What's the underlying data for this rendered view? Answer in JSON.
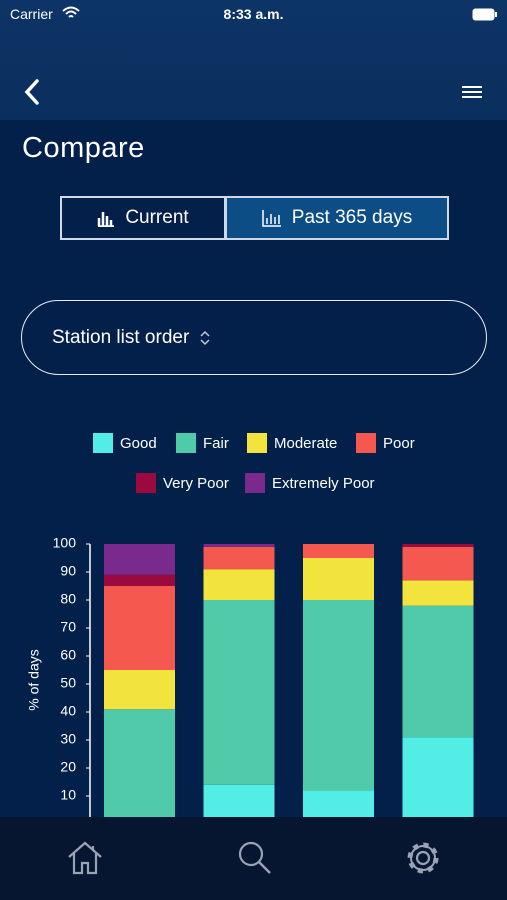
{
  "status_bar": {
    "carrier": "Carrier",
    "time": "8:33 a.m."
  },
  "title": "Compare",
  "toggle": {
    "options": [
      "Current",
      "Past 365 days"
    ],
    "selected": 1
  },
  "dropdown": "Station list order",
  "chart_data": {
    "type": "stacked_bar",
    "ylabel": "% of days",
    "categories": [
      null,
      null,
      null,
      null
    ],
    "series": [
      {
        "name": "Good",
        "color": "#52ede4",
        "values": [
          0,
          14,
          12,
          31
        ]
      },
      {
        "name": "Fair",
        "color": "#4fcba9",
        "values": [
          41,
          66,
          68,
          47
        ]
      },
      {
        "name": "Moderate",
        "color": "#f2e43d",
        "values": [
          14,
          11,
          15,
          9
        ]
      },
      {
        "name": "Poor",
        "color": "#f5584f",
        "values": [
          30,
          8,
          5,
          12
        ]
      },
      {
        "name": "Very Poor",
        "color": "#9a0a3f",
        "values": [
          4,
          0,
          0,
          1
        ]
      },
      {
        "name": "Extremely Poor",
        "color": "#7a2a8c",
        "values": [
          11,
          1,
          0,
          0
        ]
      }
    ],
    "ylim": [
      0,
      100
    ],
    "yticks": [
      10,
      20,
      30,
      40,
      50,
      60,
      70,
      80,
      90,
      100
    ]
  }
}
